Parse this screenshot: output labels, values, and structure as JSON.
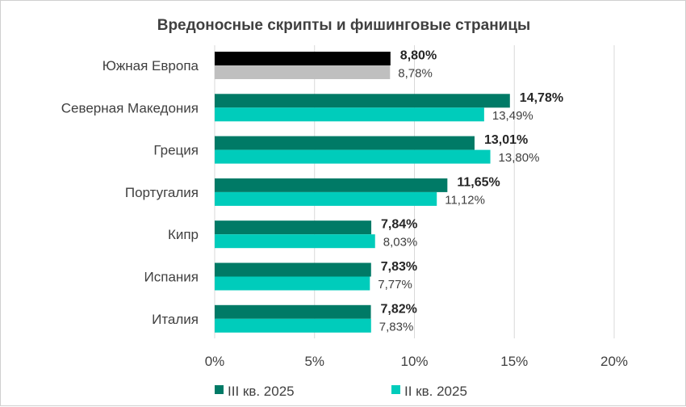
{
  "chart_data": {
    "type": "bar",
    "orientation": "horizontal",
    "title": "Вредоносные скрипты и фишинговые страницы",
    "categories": [
      "Южная Европа",
      "Северная Македония",
      "Греция",
      "Португалия",
      "Кипр",
      "Испания",
      "Италия"
    ],
    "series": [
      {
        "name": "III кв. 2025",
        "values": [
          8.8,
          14.78,
          13.01,
          11.65,
          7.84,
          7.83,
          7.82
        ],
        "labels": [
          "8,80%",
          "14,78%",
          "13,01%",
          "11,65%",
          "7,84%",
          "7,83%",
          "7,82%"
        ],
        "color": "#007A66",
        "highlight_color": "#000000"
      },
      {
        "name": "II кв. 2025",
        "values": [
          8.78,
          13.49,
          13.8,
          11.12,
          8.03,
          7.77,
          7.83
        ],
        "labels": [
          "8,78%",
          "13,49%",
          "13,80%",
          "11,12%",
          "8,03%",
          "7,77%",
          "7,83%"
        ],
        "color": "#00CCBB",
        "highlight_color": "#BFBFBF"
      }
    ],
    "xlim": [
      0,
      20
    ],
    "xticks": [
      0,
      5,
      10,
      15,
      20
    ],
    "xtick_labels": [
      "0%",
      "5%",
      "10%",
      "15%",
      "20%"
    ],
    "grid": true,
    "legend_position": "bottom"
  }
}
